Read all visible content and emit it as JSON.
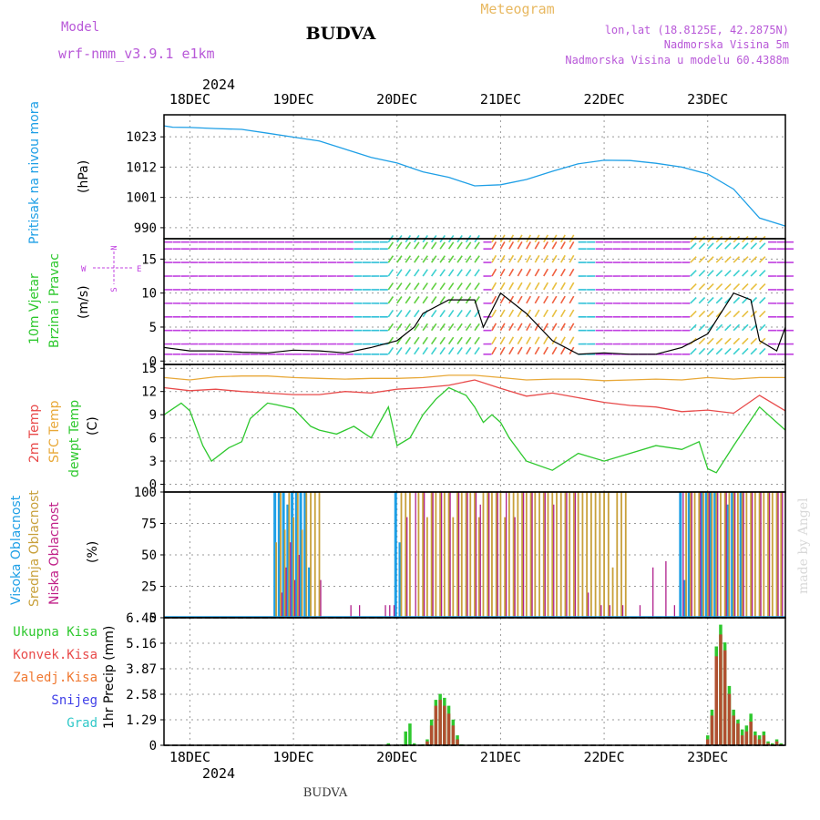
{
  "header": {
    "model_label": "Model",
    "model_name": "wrf-nmm_v3.9.1 e1km",
    "station": "BUDVA",
    "title": "Meteogram",
    "lonlat": "lon,lat (18.8125E, 42.2875N)",
    "elevation": "Nadmorska Visina 5m",
    "model_elevation": "Nadmorska Visina u modelu 60.4388m",
    "footer_station": "BUDVA",
    "watermark": "made by Angel"
  },
  "time_axis": {
    "year": "2024",
    "days": [
      "18DEC",
      "19DEC",
      "20DEC",
      "21DEC",
      "22DEC",
      "23DEC"
    ],
    "day_positions_hours": [
      6,
      30,
      54,
      78,
      102,
      126
    ],
    "range_hours": [
      0,
      144
    ]
  },
  "colors": {
    "pressure": "#1e9fe6",
    "temp2m": "#e84a4a",
    "sfc_temp": "#e8a838",
    "dewpt": "#2ec82e",
    "cloud_high": "#1e9fe6",
    "cloud_mid": "#c8a03a",
    "cloud_low": "#b0208c",
    "rain_total": "#2ec82e",
    "rain_conv": "#b05030",
    "wind_magenta": "#c040e0",
    "wind_black": "#000000"
  },
  "chart_data": [
    {
      "type": "line",
      "panel": "pressure",
      "ylabel_main": "Pritisak na nivou mora",
      "ylabel_unit": "(hPa)",
      "yticks": [
        990,
        1001,
        1012,
        1023
      ],
      "ylim": [
        986,
        1031
      ],
      "series": [
        {
          "values_x": [
            0,
            2,
            6,
            12,
            18,
            24,
            30,
            36,
            42,
            48,
            54,
            60,
            66,
            72,
            78,
            84,
            90,
            96,
            102,
            108,
            114,
            120,
            126,
            132,
            138,
            144
          ],
          "values_y": [
            1027,
            1026.5,
            1026.4,
            1026,
            1025.7,
            1024.3,
            1022.9,
            1021.5,
            1018.5,
            1015.5,
            1013.5,
            1010.3,
            1008.3,
            1005.2,
            1005.6,
            1007.5,
            1010.5,
            1013.2,
            1014.5,
            1014.4,
            1013.4,
            1012,
            1009.5,
            1004,
            993.5,
            990.6
          ]
        }
      ]
    },
    {
      "type": "line",
      "panel": "wind",
      "ylabel_main": "10m Vjetar",
      "ylabel_sub": "Brzina i Pravac",
      "ylabel_unit": "(m/s)",
      "compass": [
        "N",
        "S",
        "W",
        "E"
      ],
      "yticks": [
        0,
        5,
        10,
        15
      ],
      "ylim": [
        -0.5,
        18
      ],
      "series": [
        {
          "values_x": [
            0,
            6,
            12,
            18,
            24,
            30,
            36,
            42,
            48,
            54,
            58,
            60,
            66,
            72,
            74,
            78,
            84,
            90,
            96,
            102,
            108,
            114,
            120,
            126,
            128,
            132,
            136,
            138,
            142,
            144
          ],
          "values_y": [
            2,
            1.5,
            1.5,
            1.3,
            1.2,
            1.6,
            1.5,
            1.2,
            2,
            3,
            5,
            7,
            9,
            9,
            5,
            10,
            7,
            3,
            1,
            1.2,
            1,
            1,
            2,
            4,
            6,
            10,
            9,
            3,
            1.5,
            5
          ]
        }
      ]
    },
    {
      "type": "line",
      "panel": "temperature",
      "ylabel_lines": [
        "2m Temp",
        "SFC Temp",
        "dewpt Temp"
      ],
      "ylabel_unit": "(C)",
      "yticks": [
        0,
        3,
        6,
        9,
        12,
        15
      ],
      "ylim": [
        -1,
        15.5
      ],
      "series": [
        {
          "name": "2m Temp",
          "values_x": [
            0,
            6,
            12,
            18,
            24,
            30,
            36,
            42,
            48,
            54,
            60,
            66,
            72,
            78,
            84,
            90,
            96,
            102,
            108,
            114,
            120,
            126,
            132,
            138,
            144
          ],
          "values_y": [
            12.5,
            12.1,
            12.3,
            12,
            11.8,
            11.6,
            11.6,
            12,
            11.8,
            12.3,
            12.5,
            12.8,
            13.5,
            12.4,
            11.4,
            11.8,
            11.2,
            10.6,
            10.2,
            10,
            9.4,
            9.6,
            9.2,
            11.5,
            9.5
          ]
        },
        {
          "name": "SFC Temp",
          "values_x": [
            0,
            6,
            12,
            18,
            24,
            30,
            36,
            42,
            48,
            54,
            60,
            66,
            72,
            78,
            84,
            90,
            96,
            102,
            108,
            114,
            120,
            126,
            132,
            138,
            144
          ],
          "values_y": [
            13.8,
            13.5,
            13.9,
            14,
            14,
            13.8,
            13.7,
            13.6,
            13.7,
            13.7,
            13.8,
            14.1,
            14.1,
            13.8,
            13.5,
            13.6,
            13.6,
            13.4,
            13.5,
            13.6,
            13.5,
            13.8,
            13.6,
            13.8,
            13.8
          ]
        },
        {
          "name": "dewpt Temp",
          "values_x": [
            0,
            4,
            6,
            9,
            11,
            15,
            18,
            20,
            24,
            26,
            30,
            34,
            36,
            40,
            44,
            48,
            52,
            54,
            57,
            60,
            63,
            66,
            70,
            72,
            74,
            76,
            78,
            80,
            84,
            90,
            96,
            102,
            108,
            114,
            120,
            124,
            126,
            128,
            132,
            138,
            140,
            144
          ],
          "values_y": [
            9,
            10.5,
            9.5,
            5,
            3,
            4.7,
            5.5,
            8.5,
            10.5,
            10.3,
            9.8,
            7.5,
            7,
            6.5,
            7.5,
            6,
            10,
            5,
            6,
            9,
            11,
            12.5,
            11.5,
            10,
            8,
            9,
            8,
            6,
            3,
            1.8,
            4,
            3,
            4,
            5,
            4.5,
            5.5,
            2,
            1.5,
            5,
            10,
            9,
            7
          ]
        }
      ]
    },
    {
      "type": "bar",
      "panel": "clouds",
      "ylabel_lines": [
        "Visoka Oblacnost",
        "Srednja Oblacnost",
        "Niska Oblacnost"
      ],
      "ylabel_unit": "(%)",
      "yticks": [
        0,
        25,
        50,
        75,
        100
      ],
      "ylim": [
        0,
        100
      ],
      "series": [
        {
          "name": "Visoka Oblacnost",
          "values_x": [
            26,
            27,
            28,
            29,
            30,
            31,
            32,
            33,
            34,
            54,
            55,
            120,
            121,
            122,
            125,
            126,
            127,
            128,
            131,
            132,
            134
          ],
          "values_y": [
            100,
            100,
            100,
            90,
            100,
            100,
            100,
            100,
            40,
            100,
            60,
            100,
            30,
            100,
            100,
            100,
            100,
            100,
            90,
            100,
            100
          ]
        },
        {
          "name": "Srednja Oblacnost",
          "values_x": [
            26,
            27,
            28,
            29,
            30,
            31,
            32,
            33,
            34,
            35,
            36,
            55,
            56,
            57,
            59,
            60,
            61,
            62,
            63,
            64,
            65,
            66,
            67,
            68,
            69,
            70,
            71,
            72,
            73,
            74,
            75,
            76,
            77,
            78,
            79,
            80,
            81,
            82,
            83,
            84,
            85,
            86,
            87,
            88,
            89,
            90,
            91,
            92,
            93,
            94,
            95,
            96,
            97,
            98,
            99,
            100,
            101,
            102,
            103,
            104,
            105,
            106,
            107,
            121,
            122,
            123,
            124,
            125,
            126,
            127,
            128,
            129,
            130,
            131,
            132,
            133,
            134,
            135,
            136,
            137,
            138,
            139,
            140,
            141,
            142,
            143
          ],
          "values_y": [
            60,
            100,
            70,
            100,
            80,
            100,
            70,
            100,
            100,
            100,
            100,
            100,
            100,
            100,
            100,
            100,
            80,
            100,
            100,
            100,
            100,
            100,
            80,
            100,
            100,
            100,
            100,
            100,
            80,
            100,
            100,
            100,
            100,
            100,
            80,
            100,
            100,
            100,
            100,
            100,
            100,
            100,
            100,
            100,
            100,
            100,
            100,
            100,
            100,
            100,
            100,
            100,
            100,
            100,
            100,
            100,
            100,
            100,
            100,
            40,
            100,
            100,
            100,
            100,
            100,
            100,
            100,
            100,
            100,
            100,
            100,
            100,
            100,
            100,
            100,
            100,
            100,
            100,
            100,
            100,
            100,
            100,
            100,
            100,
            100,
            100
          ]
        },
        {
          "name": "Niska Oblacnost",
          "values_x": [
            27,
            28,
            29,
            30,
            31,
            36,
            43,
            45,
            51,
            52,
            53,
            56,
            58,
            60,
            62,
            64,
            66,
            68,
            70,
            72,
            73,
            75,
            77,
            79,
            81,
            83,
            85,
            88,
            90,
            93,
            95,
            98,
            101,
            103,
            106,
            110,
            113,
            116,
            118,
            120,
            122,
            124,
            126,
            128,
            130,
            132,
            134,
            136,
            138,
            140,
            142,
            143
          ],
          "values_y": [
            20,
            40,
            60,
            30,
            50,
            30,
            10,
            10,
            10,
            10,
            10,
            80,
            100,
            100,
            100,
            100,
            100,
            100,
            100,
            100,
            90,
            100,
            100,
            100,
            80,
            100,
            100,
            100,
            90,
            100,
            100,
            20,
            10,
            10,
            10,
            10,
            40,
            45,
            10,
            100,
            100,
            100,
            100,
            100,
            100,
            100,
            100,
            100,
            100,
            100,
            100,
            100
          ]
        }
      ]
    },
    {
      "type": "bar",
      "panel": "precipitation",
      "ylabel_main": "1hr Precip (mm)",
      "legend": [
        "Ukupna Kisa",
        "Konvek.Kisa",
        "Zaledj.Kisa",
        "Snijeg",
        "Grad"
      ],
      "yticks": [
        0,
        1.29,
        2.58,
        3.87,
        5.16,
        6.45
      ],
      "ylim": [
        0,
        6.45
      ],
      "series": [
        {
          "name": "Ukupna Kisa",
          "values_x": [
            52,
            55,
            56,
            57,
            58,
            60,
            61,
            62,
            63,
            64,
            65,
            66,
            67,
            68,
            69,
            126,
            127,
            128,
            129,
            130,
            131,
            132,
            133,
            134,
            135,
            136,
            137,
            138,
            139,
            140,
            141,
            142,
            143
          ],
          "values_y": [
            0.1,
            0.05,
            0.7,
            1.1,
            0.1,
            0.05,
            0.3,
            1.3,
            2.3,
            2.6,
            2.4,
            2.0,
            1.3,
            0.5,
            0.05,
            0.5,
            1.8,
            5.0,
            6.1,
            5.2,
            3.0,
            1.8,
            1.3,
            0.8,
            1.0,
            1.6,
            0.7,
            0.5,
            0.7,
            0.2,
            0.1,
            0.3,
            0.1
          ]
        },
        {
          "name": "Konvek.Kisa",
          "values_x": [
            61,
            62,
            63,
            64,
            65,
            66,
            67,
            68,
            126,
            127,
            128,
            129,
            130,
            131,
            132,
            133,
            134,
            135,
            136,
            137,
            138,
            139,
            140,
            141,
            142,
            143
          ],
          "values_y": [
            0.2,
            1.0,
            2.0,
            2.3,
            2.0,
            1.6,
            1.0,
            0.3,
            0.3,
            1.5,
            4.5,
            5.6,
            4.8,
            2.6,
            1.5,
            1.1,
            0.5,
            0.7,
            1.2,
            0.5,
            0.3,
            0.5,
            0.1,
            0.05,
            0.2,
            0.05
          ]
        }
      ]
    }
  ]
}
